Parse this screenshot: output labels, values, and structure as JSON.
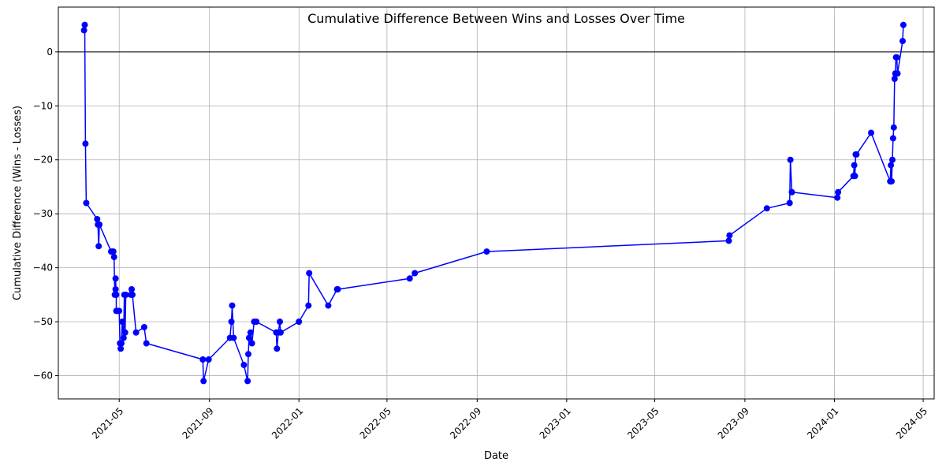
{
  "chart_data": {
    "type": "line",
    "title": "Cumulative Difference Between Wins and Losses Over Time",
    "xlabel": "Date",
    "ylabel": "Cumulative Difference (Wins - Losses)",
    "x_is_date": true,
    "xlim": [
      "2021-02-07",
      "2024-05-16"
    ],
    "ylim": [
      -64.3,
      8.3
    ],
    "x_ticks": [
      "2021-05-01",
      "2021-09-01",
      "2022-01-01",
      "2022-05-01",
      "2022-09-01",
      "2023-01-01",
      "2023-05-01",
      "2023-09-01",
      "2024-01-01",
      "2024-05-01"
    ],
    "x_tick_labels": [
      "2021-05",
      "2021-09",
      "2022-01",
      "2022-05",
      "2022-09",
      "2023-01",
      "2023-05",
      "2023-09",
      "2024-01",
      "2024-05"
    ],
    "y_ticks": [
      0,
      -10,
      -20,
      -30,
      -40,
      -50,
      -60
    ],
    "y_tick_labels": [
      "0",
      "−10",
      "−20",
      "−30",
      "−40",
      "−50",
      "−60"
    ],
    "grid": true,
    "reference_line_y": 0,
    "series": [
      {
        "color": "#0000ff",
        "marker": "circle",
        "x": [
          "2021-03-14",
          "2021-03-15",
          "2021-03-16",
          "2021-03-17",
          "2021-04-01",
          "2021-04-02",
          "2021-04-03",
          "2021-04-04",
          "2021-04-20",
          "2021-04-22",
          "2021-04-23",
          "2021-04-24",
          "2021-04-25",
          "2021-04-26",
          "2021-04-26",
          "2021-04-27",
          "2021-04-27",
          "2021-04-28",
          "2021-05-01",
          "2021-05-02",
          "2021-05-03",
          "2021-05-04",
          "2021-05-05",
          "2021-05-07",
          "2021-05-08",
          "2021-05-09",
          "2021-05-10",
          "2021-05-17",
          "2021-05-18",
          "2021-05-19",
          "2021-05-24",
          "2021-06-04",
          "2021-06-07",
          "2021-08-23",
          "2021-08-24",
          "2021-08-31",
          "2021-09-29",
          "2021-10-01",
          "2021-10-02",
          "2021-10-04",
          "2021-10-18",
          "2021-10-23",
          "2021-10-24",
          "2021-10-25",
          "2021-10-27",
          "2021-10-29",
          "2021-11-01",
          "2021-11-04",
          "2021-12-01",
          "2021-12-02",
          "2021-12-04",
          "2021-12-06",
          "2021-12-07",
          "2022-01-01",
          "2022-01-14",
          "2022-01-15",
          "2022-02-10",
          "2022-02-22",
          "2022-02-23",
          "2022-06-01",
          "2022-06-08",
          "2022-09-14",
          "2023-08-10",
          "2023-08-11",
          "2023-10-01",
          "2023-11-01",
          "2023-11-02",
          "2023-11-04",
          "2024-01-05",
          "2024-01-06",
          "2024-01-27",
          "2024-01-28",
          "2024-01-29",
          "2024-01-30",
          "2024-01-31",
          "2024-02-20",
          "2024-03-17",
          "2024-03-18",
          "2024-03-19",
          "2024-03-20",
          "2024-03-21",
          "2024-03-22",
          "2024-03-23",
          "2024-03-24",
          "2024-03-25",
          "2024-03-26",
          "2024-03-27",
          "2024-04-03",
          "2024-04-04"
        ],
        "y": [
          4,
          5,
          -17,
          -28,
          -31,
          -32,
          -36,
          -32,
          -37,
          -37,
          -37,
          -38,
          -45,
          -44,
          -42,
          -45,
          -48,
          -48,
          -48,
          -54,
          -55,
          -54,
          -50,
          -53,
          -45,
          -52,
          -45,
          -45,
          -44,
          -45,
          -52,
          -51,
          -54,
          -57,
          -61,
          -57,
          -53,
          -50,
          -47,
          -53,
          -58,
          -61,
          -56,
          -53,
          -52,
          -54,
          -50,
          -50,
          -52,
          -55,
          -52,
          -50,
          -52,
          -50,
          -47,
          -41,
          -47,
          -44,
          -44,
          -42,
          -41,
          -37,
          -35,
          -34,
          -29,
          -28,
          -20,
          -26,
          -27,
          -26,
          -23,
          -21,
          -23,
          -19,
          -19,
          -15,
          -24,
          -21,
          -24,
          -20,
          -16,
          -14,
          -5,
          -4,
          -1,
          -1,
          -4,
          2,
          5
        ]
      }
    ]
  }
}
